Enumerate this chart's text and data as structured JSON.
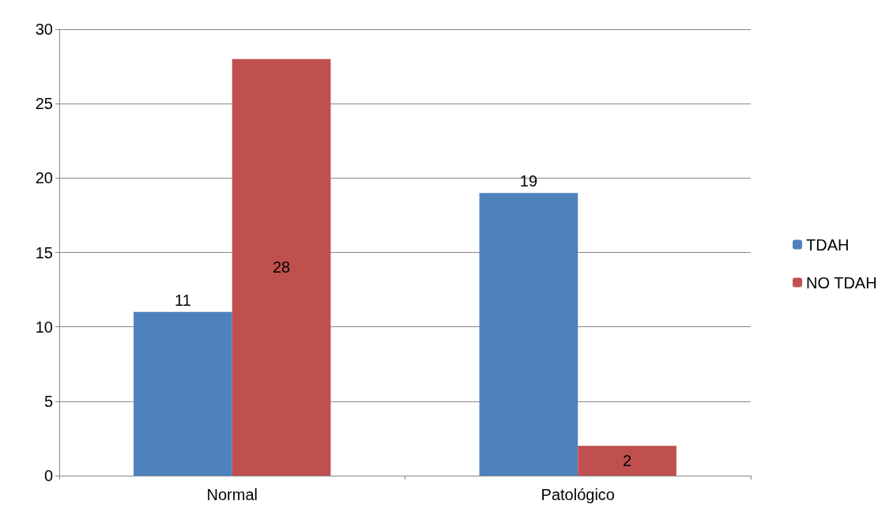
{
  "chart_data": {
    "type": "bar",
    "categories": [
      "Normal",
      "Patológico"
    ],
    "series": [
      {
        "name": "TDAH",
        "color": "#4f81bd",
        "values": [
          11,
          19
        ]
      },
      {
        "name": "NO TDAH",
        "color": "#c0504d",
        "values": [
          28,
          2
        ]
      }
    ],
    "ylim": [
      0,
      30
    ],
    "yticks": [
      0,
      5,
      10,
      15,
      20,
      25,
      30
    ],
    "grid": "y",
    "legend": "right",
    "data_labels": true
  }
}
